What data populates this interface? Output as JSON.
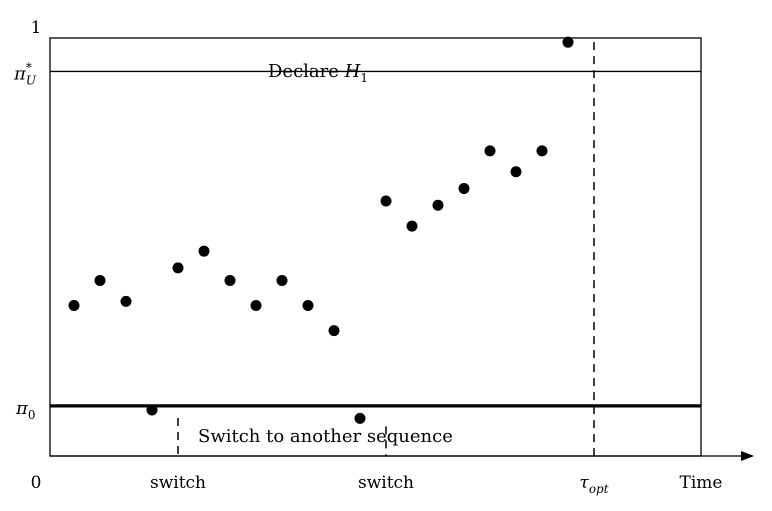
{
  "axis": {
    "y_top_label": "1",
    "origin_label": "0",
    "x_label": "Time",
    "upper_threshold": {
      "symbol": "π",
      "sub": "U",
      "sup": "*",
      "value": 0.92
    },
    "lower_threshold": {
      "symbol": "π",
      "sub": "0",
      "value": 0.12
    }
  },
  "regions": {
    "top_text": "Declare ",
    "top_symbol": "H",
    "top_symbol_sub": "1",
    "bottom_text": "Switch to another sequence"
  },
  "time_markers": [
    {
      "label": "switch",
      "time": 5
    },
    {
      "label": "switch",
      "time": 13
    },
    {
      "label_symbol": "τ",
      "label_sub": "opt",
      "time": 21
    }
  ],
  "points": [
    {
      "t": 1,
      "p": 0.36
    },
    {
      "t": 2,
      "p": 0.42
    },
    {
      "t": 3,
      "p": 0.37
    },
    {
      "t": 4,
      "p": 0.11
    },
    {
      "t": 5,
      "p": 0.45
    },
    {
      "t": 6,
      "p": 0.49
    },
    {
      "t": 7,
      "p": 0.42
    },
    {
      "t": 8,
      "p": 0.36
    },
    {
      "t": 9,
      "p": 0.42
    },
    {
      "t": 10,
      "p": 0.36
    },
    {
      "t": 11,
      "p": 0.3
    },
    {
      "t": 12,
      "p": 0.09
    },
    {
      "t": 13,
      "p": 0.61
    },
    {
      "t": 14,
      "p": 0.55
    },
    {
      "t": 15,
      "p": 0.6
    },
    {
      "t": 16,
      "p": 0.64
    },
    {
      "t": 17,
      "p": 0.73
    },
    {
      "t": 18,
      "p": 0.68
    },
    {
      "t": 19,
      "p": 0.73
    },
    {
      "t": 20,
      "p": 0.99
    }
  ]
}
